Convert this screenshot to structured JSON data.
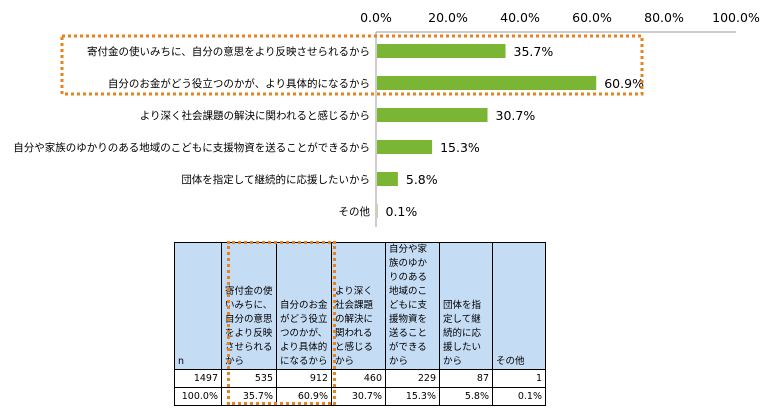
{
  "colors": {
    "bar": "#7ab534",
    "highlight": "#e8821e",
    "header_bg": "#c5dcf5",
    "axis": "#9b9b9b"
  },
  "chart_data": {
    "type": "bar",
    "orientation": "horizontal",
    "categories": [
      "寄付金の使いみちに、自分の意思をより反映させられるから",
      "自分のお金がどう役立つのかが、より具体的になるから",
      "より深く社会課題の解決に関われると感じるから",
      "自分や家族のゆかりのある地域のこどもに支援物資を送ることができるから",
      "団体を指定して継続的に応援したいから",
      "その他"
    ],
    "values": [
      35.7,
      60.9,
      30.7,
      15.3,
      5.8,
      0.1
    ],
    "value_labels": [
      "35.7%",
      "60.9%",
      "30.7%",
      "15.3%",
      "5.8%",
      "0.1%"
    ],
    "xlim": [
      0,
      100
    ],
    "ticks": [
      0,
      20,
      40,
      60,
      80,
      100
    ],
    "tick_labels": [
      "0.0%",
      "20.0%",
      "40.0%",
      "60.0%",
      "80.0%",
      "100.0%"
    ],
    "axis_position": "top",
    "grid": false,
    "highlighted_categories": [
      0,
      1
    ]
  },
  "table": {
    "headers": [
      "n",
      "寄付金の使いみちに、自分の意思をより反映させられるから",
      "自分のお金がどう役立つのかが、より具体的になるから",
      "より深く社会課題の解決に関われると感じるから",
      "自分や家族のゆかりのある地域のこどもに支援物資を送ることができるから",
      "団体を指定して継続的に応援したいから",
      "その他"
    ],
    "counts": [
      "1497",
      "535",
      "912",
      "460",
      "229",
      "87",
      "1"
    ],
    "percents": [
      "100.0%",
      "35.7%",
      "60.9%",
      "30.7%",
      "15.3%",
      "5.8%",
      "0.1%"
    ]
  }
}
